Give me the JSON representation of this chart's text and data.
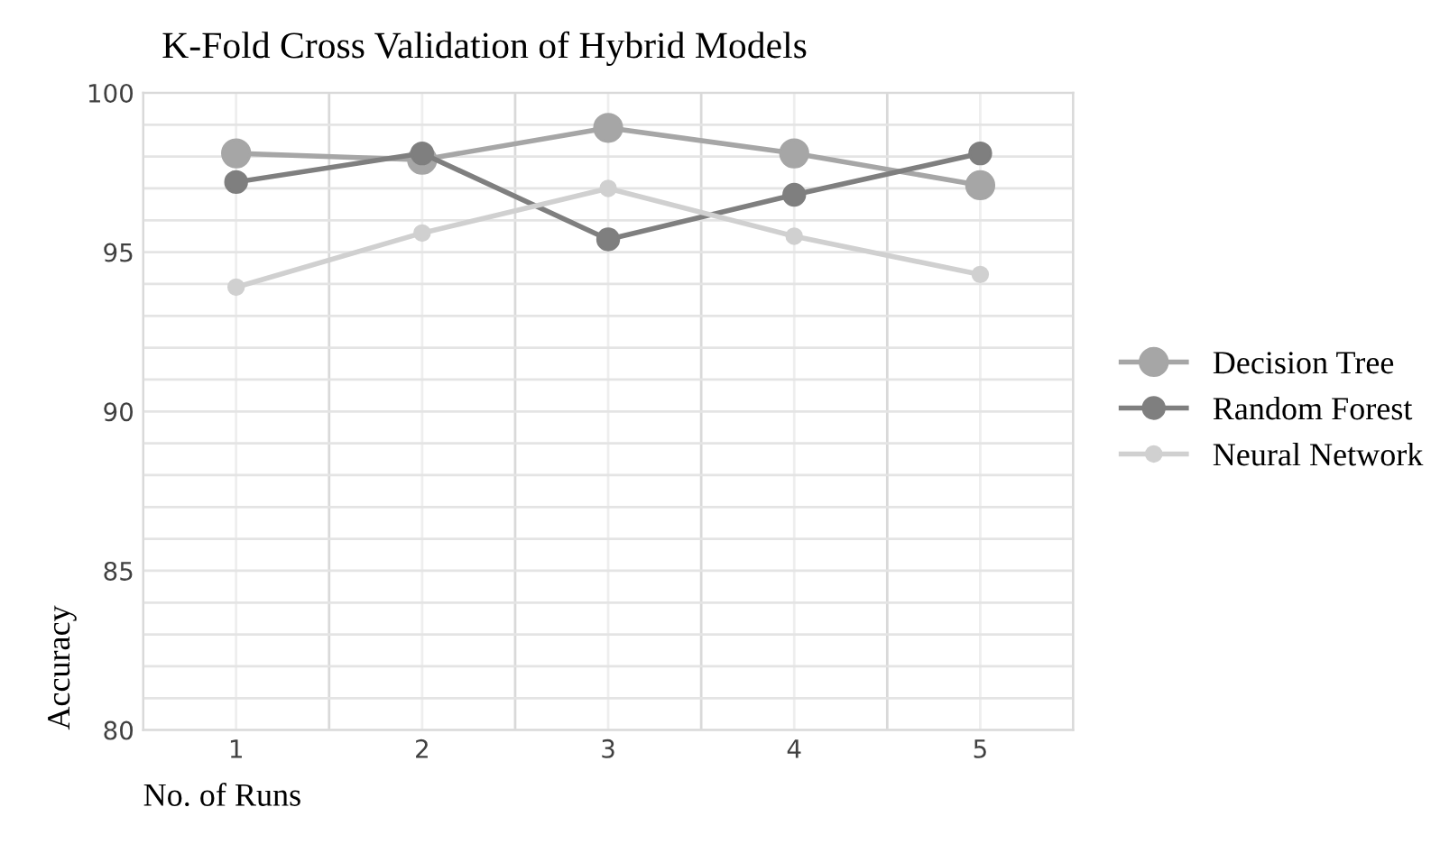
{
  "chart_data": {
    "type": "line",
    "title": "K-Fold Cross Validation of Hybrid Models",
    "xlabel": "No. of Runs",
    "ylabel": "Accuracy",
    "categories": [
      "1",
      "2",
      "3",
      "4",
      "5"
    ],
    "series": [
      {
        "name": "Decision Tree",
        "color": "#a6a6a6",
        "values": [
          98.1,
          97.9,
          98.9,
          98.1,
          97.1
        ]
      },
      {
        "name": "Random Forest",
        "color": "#7f7f7f",
        "values": [
          97.2,
          98.1,
          95.4,
          96.8,
          98.1
        ]
      },
      {
        "name": "Neural Network",
        "color": "#d0d0d0",
        "values": [
          93.9,
          95.6,
          97.0,
          95.5,
          94.3
        ]
      }
    ],
    "ylim": [
      80,
      100
    ],
    "yticks": [
      80,
      {
        "value": 81,
        "label": null
      },
      {
        "value": 82,
        "label": null
      },
      {
        "value": 83,
        "label": null
      },
      {
        "value": 84,
        "label": null
      },
      85,
      {
        "value": 86,
        "label": null
      },
      {
        "value": 87,
        "label": null
      },
      {
        "value": 88,
        "label": null
      },
      {
        "value": 89,
        "label": null
      },
      90,
      {
        "value": 91,
        "label": null
      },
      {
        "value": 92,
        "label": null
      },
      {
        "value": 93,
        "label": null
      },
      {
        "value": 94,
        "label": null
      },
      95,
      {
        "value": 96,
        "label": null
      },
      {
        "value": 97,
        "label": null
      },
      {
        "value": 98,
        "label": null
      },
      {
        "value": 99,
        "label": null
      },
      100
    ],
    "grid": true,
    "legend": "right",
    "marker": "circle",
    "line_style": "solid"
  }
}
